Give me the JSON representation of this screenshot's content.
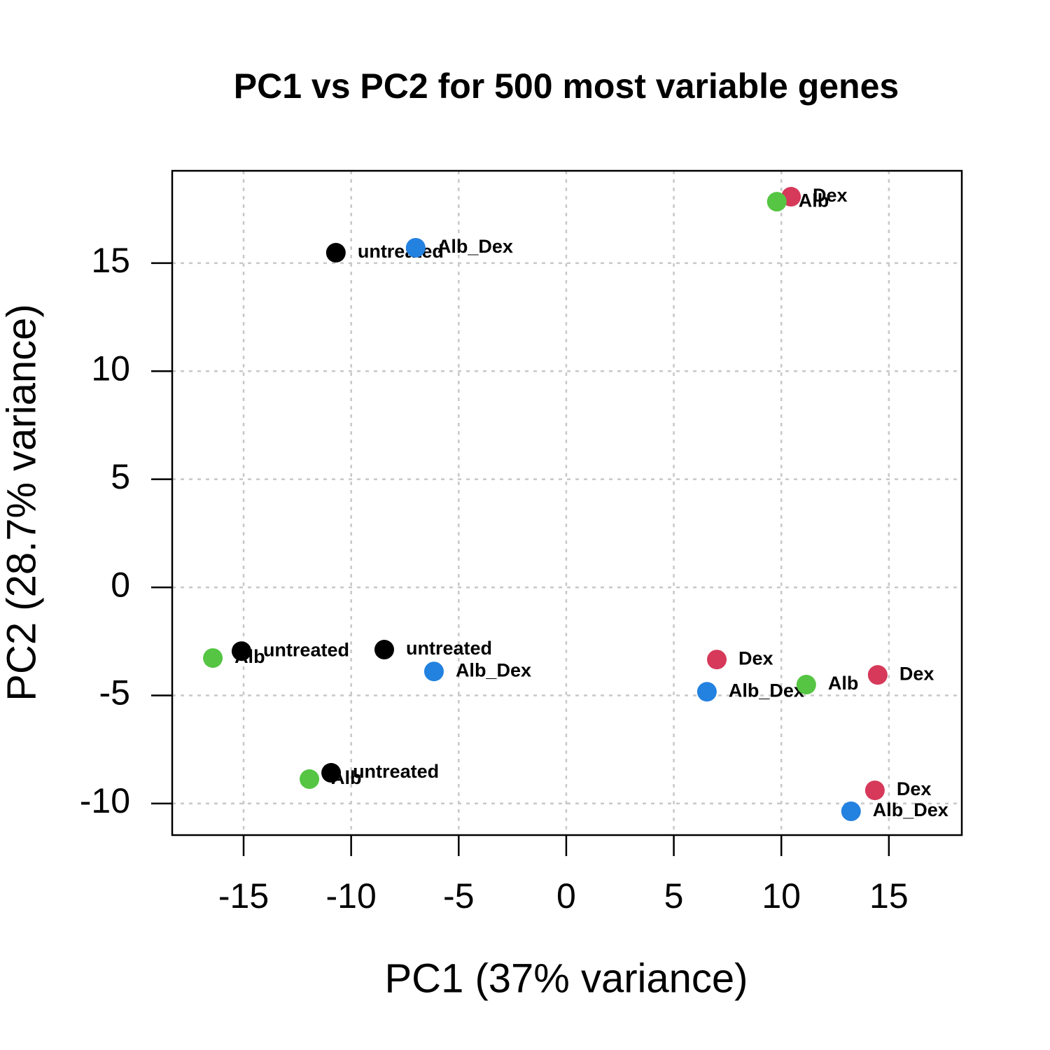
{
  "chart_data": {
    "type": "scatter",
    "title": "PC1 vs PC2 for 500 most variable genes",
    "x_label": "PC1 (37% variance)",
    "y_label": "PC2 (28.7% variance)",
    "x": [
      -10.71,
      -7.0,
      10.45,
      9.79,
      -16.43,
      -15.1,
      -8.46,
      -6.15,
      7.0,
      6.54,
      11.16,
      14.48,
      -10.93,
      -11.94,
      14.35,
      13.24
    ],
    "y": [
      15.48,
      15.71,
      18.07,
      17.84,
      -3.27,
      -2.95,
      -2.88,
      -3.89,
      -3.34,
      -4.83,
      -4.5,
      -4.05,
      -8.58,
      -8.87,
      -9.39,
      -10.36
    ],
    "labels": [
      "untreated",
      "Alb_Dex",
      "Dex",
      "Alb",
      "Alb",
      "untreated",
      "untreated",
      "Alb_Dex",
      "Dex",
      "Alb_Dex",
      "Alb",
      "Dex",
      "untreated",
      "Alb",
      "Dex",
      "Alb_Dex"
    ],
    "colors": [
      "#000000",
      "#2381e0",
      "#d6395a",
      "#55c543",
      "#55c543",
      "#000000",
      "#000000",
      "#2381e0",
      "#d6395a",
      "#2381e0",
      "#55c543",
      "#d6395a",
      "#000000",
      "#55c543",
      "#d6395a",
      "#2381e0"
    ],
    "xlim": [
      -18.32,
      18.39
    ],
    "ylim": [
      -11.46,
      19.27
    ],
    "xticks": [
      -15,
      -10,
      -5,
      0,
      5,
      10,
      15
    ],
    "yticks": [
      -10,
      -5,
      0,
      5,
      10,
      15
    ],
    "grid": true
  }
}
